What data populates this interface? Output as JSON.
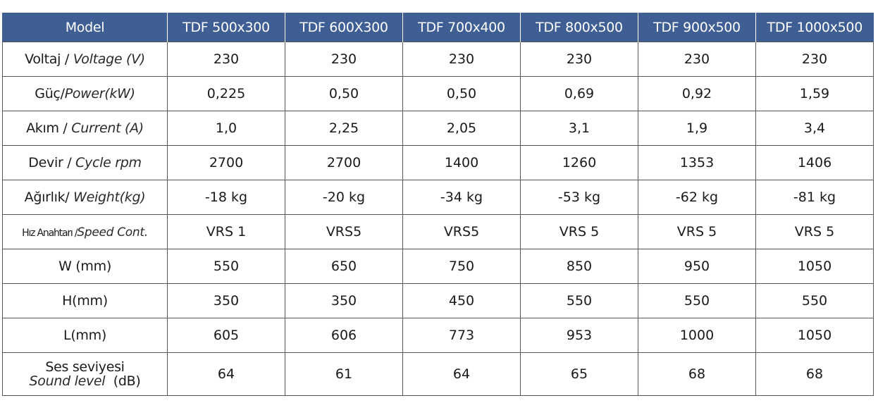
{
  "header": {
    "model_label": "Model",
    "models": [
      "TDF 500x300",
      "TDF 600X300",
      "TDF 700x400",
      "TDF 800x500",
      "TDF 900x500",
      "TDF 1000x500"
    ]
  },
  "rows": [
    {
      "tr": "Voltaj / ",
      "en": "Voltage (V)",
      "values": [
        "230",
        "230",
        "230",
        "230",
        "230",
        "230"
      ]
    },
    {
      "tr": "Güç/",
      "en": "Power(kW)",
      "values": [
        "0,225",
        "0,50",
        "0,50",
        "0,69",
        "0,92",
        "1,59"
      ]
    },
    {
      "tr": "Akım / ",
      "en": "Current (A)",
      "values": [
        "1,0",
        "2,25",
        "2,05",
        "3,1",
        "1,9",
        "3,4"
      ]
    },
    {
      "tr": "Devir / ",
      "en": "Cycle rpm",
      "values": [
        "2700",
        "2700",
        "1400",
        "1260",
        "1353",
        "1406"
      ]
    },
    {
      "tr": "Ağırlık/ ",
      "en": "Weight(kg)",
      "values": [
        "-18 kg",
        "-20 kg",
        "-34 kg",
        "-53 kg",
        "-62 kg",
        "-81 kg"
      ]
    },
    {
      "tr": "Hız Anahtarı /",
      "en": "Speed Cont.",
      "values": [
        "VRS 1",
        "VRS5",
        "VRS5",
        "VRS 5",
        "VRS 5",
        "VRS 5"
      ]
    },
    {
      "tr": "W (mm)",
      "en": "",
      "values": [
        "550",
        "650",
        "750",
        "850",
        "950",
        "1050"
      ]
    },
    {
      "tr": "H(mm)",
      "en": "",
      "values": [
        "350",
        "350",
        "450",
        "550",
        "550",
        "550"
      ]
    },
    {
      "tr": "L(mm)",
      "en": "",
      "values": [
        "605",
        "606",
        "773",
        "953",
        "1000",
        "1050"
      ]
    }
  ],
  "sound_row": {
    "tr": "Ses seviyesi",
    "en": "Sound level",
    "unit": "  (dB)",
    "values": [
      "64",
      "61",
      "64",
      "65",
      "68",
      "68"
    ]
  }
}
